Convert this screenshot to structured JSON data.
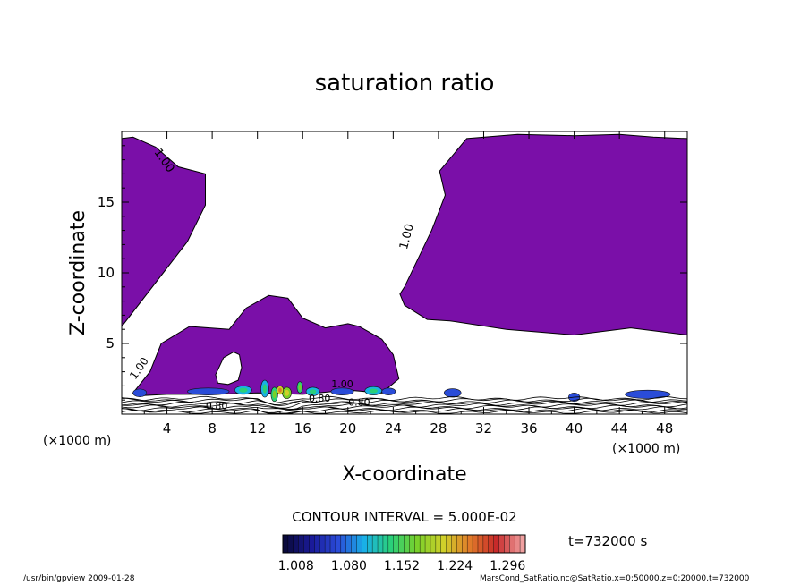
{
  "chart_data": {
    "type": "contour",
    "title": "saturation ratio",
    "xlabel": "X-coordinate",
    "ylabel": "Z-coordinate",
    "x_unit_label": "(×1000 m)",
    "z_unit_label": "(×1000 m)",
    "xlim": [
      0,
      50
    ],
    "zlim": [
      0,
      20
    ],
    "x_ticks": [
      "4",
      "8",
      "12",
      "16",
      "20",
      "24",
      "28",
      "32",
      "36",
      "40",
      "44",
      "48"
    ],
    "x_tick_values": [
      4,
      8,
      12,
      16,
      20,
      24,
      28,
      32,
      36,
      40,
      44,
      48
    ],
    "z_ticks": [
      "5",
      "10",
      "15"
    ],
    "z_tick_values": [
      5,
      10,
      15
    ],
    "contour_labels": [
      "1.00",
      "1.00",
      "1.00",
      "0.80",
      "0.80",
      "0.80",
      "1.00"
    ],
    "contour_interval_text": "CONTOUR INTERVAL = 5.000E-02",
    "time_text": "t=732000 s",
    "colorbar": {
      "tick_labels": [
        "1.008",
        "1.080",
        "1.152",
        "1.224",
        "1.296"
      ],
      "tick_values": [
        1.008,
        1.08,
        1.152,
        1.224,
        1.296
      ],
      "range": [
        0.99,
        1.32
      ],
      "colors": [
        "#0a0a3c",
        "#1a1a9a",
        "#2a4cd8",
        "#19b0e6",
        "#2ad07a",
        "#7ad02a",
        "#d0d02a",
        "#e07a2a",
        "#c82a2a",
        "#f0a0a0"
      ]
    },
    "fill_color": "#7a0fa8",
    "regions": [
      {
        "name": "upper-left-supersaturated",
        "x": [
          0,
          0,
          5.8,
          7.4,
          7.4,
          5.0,
          3.0,
          1.0,
          0
        ],
        "z": [
          19.5,
          6.2,
          12.2,
          14.8,
          17.0,
          17.5,
          18.9,
          19.6,
          19.5
        ]
      },
      {
        "name": "upper-right-supersaturated",
        "x": [
          25.0,
          27.4,
          28.6,
          28.1,
          30.5,
          35.0,
          40.0,
          44.0,
          47.0,
          50.0,
          50.0,
          45.0,
          40.0,
          34.0,
          29.0,
          27.0,
          25.0,
          24.6
        ],
        "z": [
          9.0,
          13.0,
          15.5,
          17.2,
          19.5,
          19.8,
          19.7,
          19.8,
          19.6,
          19.5,
          5.6,
          6.1,
          5.6,
          6.0,
          6.6,
          6.7,
          7.7,
          8.5
        ]
      },
      {
        "name": "central-cloud",
        "x": [
          1.0,
          2.5,
          3.5,
          6.0,
          9.5,
          11.0,
          13.0,
          14.7,
          16.0,
          18.0,
          20.0,
          21.0,
          23.0,
          24.0,
          24.5,
          23.0,
          20.0,
          16.0,
          12.0,
          8.0,
          4.0,
          1.5
        ],
        "z": [
          1.5,
          3.0,
          5.0,
          6.2,
          6.0,
          7.5,
          8.4,
          8.2,
          6.8,
          6.1,
          6.4,
          6.2,
          5.3,
          4.2,
          2.5,
          1.5,
          1.7,
          1.4,
          1.5,
          1.4,
          1.4,
          1.3
        ]
      },
      {
        "name": "cloud-hole",
        "x": [
          8.3,
          9.0,
          9.9,
          10.4,
          10.6,
          10.3,
          9.4,
          8.5
        ],
        "z": [
          2.8,
          4.0,
          4.4,
          4.2,
          3.3,
          2.4,
          2.1,
          2.2
        ]
      }
    ]
  },
  "footer": {
    "left": "/usr/bin/gpview  2009-01-28",
    "right": "MarsCond_SatRatio.nc@SatRatio,x=0:50000,z=0:20000,t=732000"
  }
}
